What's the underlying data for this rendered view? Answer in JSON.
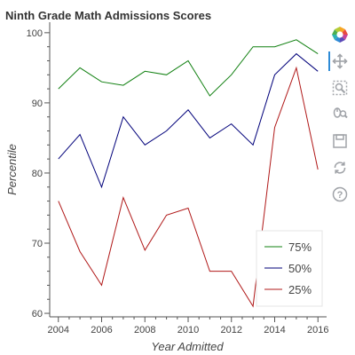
{
  "chart_data": {
    "type": "line",
    "title": "Ninth Grade Math Admissions Scores",
    "xlabel": "Year Admitted",
    "ylabel": "Percentile",
    "x": [
      2004,
      2005,
      2006,
      2007,
      2008,
      2009,
      2010,
      2011,
      2012,
      2013,
      2014,
      2015,
      2016
    ],
    "xlim": [
      2003.6,
      2016.4
    ],
    "ylim": [
      59.5,
      101.5
    ],
    "x_ticks": [
      2004,
      2006,
      2008,
      2010,
      2012,
      2014,
      2016
    ],
    "y_ticks": [
      60,
      70,
      80,
      90,
      100
    ],
    "grid": false,
    "legend_position": "bottom-right",
    "series": [
      {
        "name": "75%",
        "color": "#118011",
        "values": [
          92,
          95,
          93,
          92.5,
          94.5,
          94,
          96,
          91,
          94,
          98,
          98,
          99,
          97
        ]
      },
      {
        "name": "50%",
        "color": "#00007a",
        "values": [
          82,
          85.5,
          78,
          88,
          84,
          86,
          89,
          85,
          87,
          84,
          94,
          97,
          94.5
        ]
      },
      {
        "name": "25%",
        "color": "#b01818",
        "values": [
          76,
          68.8,
          64,
          76.5,
          69,
          74,
          75,
          66,
          66,
          61,
          86.5,
          95,
          80.5
        ]
      }
    ]
  },
  "toolbar": {
    "tools": [
      {
        "icon": "bokeh-logo-icon",
        "active": false
      },
      {
        "icon": "pan-icon",
        "active": true
      },
      {
        "icon": "box-zoom-icon",
        "active": false
      },
      {
        "icon": "wheel-zoom-icon",
        "active": false
      },
      {
        "icon": "save-icon",
        "active": false
      },
      {
        "icon": "reset-icon",
        "active": false
      },
      {
        "icon": "help-icon",
        "active": false
      }
    ]
  }
}
